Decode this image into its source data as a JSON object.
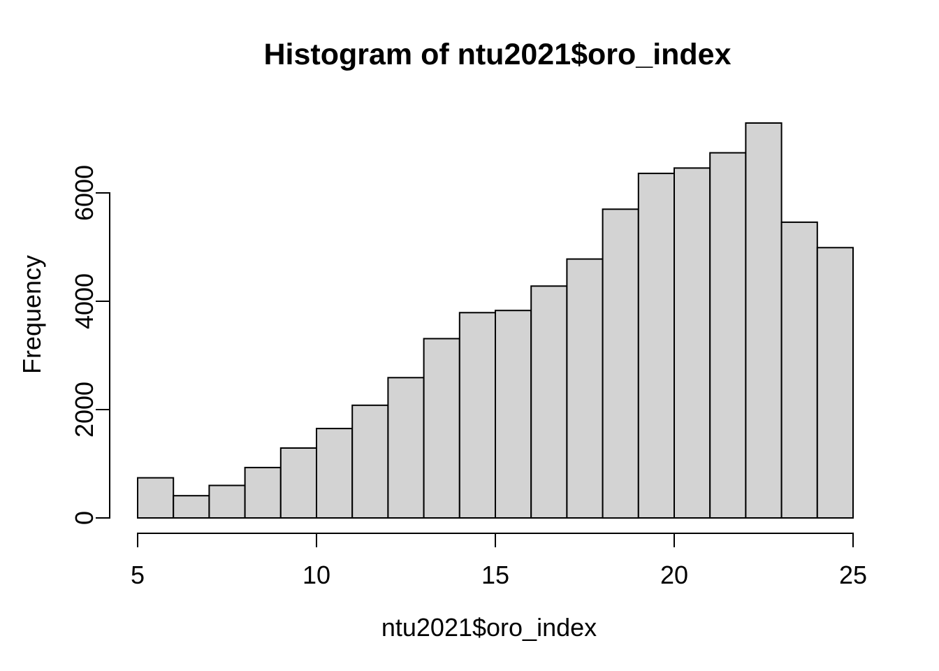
{
  "chart_data": {
    "type": "histogram",
    "title": "Histogram of ntu2021$oro_index",
    "xlabel": "ntu2021$oro_index",
    "ylabel": "Frequency",
    "xlim": [
      5,
      25
    ],
    "bin_width": 1,
    "bin_edges": [
      5,
      6,
      7,
      8,
      9,
      10,
      11,
      12,
      13,
      14,
      15,
      16,
      17,
      18,
      19,
      20,
      21,
      22,
      23,
      24,
      25
    ],
    "counts": [
      740,
      410,
      600,
      930,
      1290,
      1650,
      2080,
      2590,
      3310,
      3790,
      3830,
      4280,
      4780,
      5700,
      6360,
      6460,
      6740,
      7290,
      5460,
      4990
    ],
    "x_ticks": [
      5,
      10,
      15,
      20,
      25
    ],
    "y_ticks": [
      0,
      2000,
      4000,
      6000
    ],
    "ylim": [
      0,
      7300
    ],
    "grid": false,
    "legend": null,
    "colors": {
      "bar_fill": "#d3d3d3",
      "bar_stroke": "#000000",
      "axis": "#000000",
      "text": "#000000",
      "background": "#ffffff"
    }
  }
}
